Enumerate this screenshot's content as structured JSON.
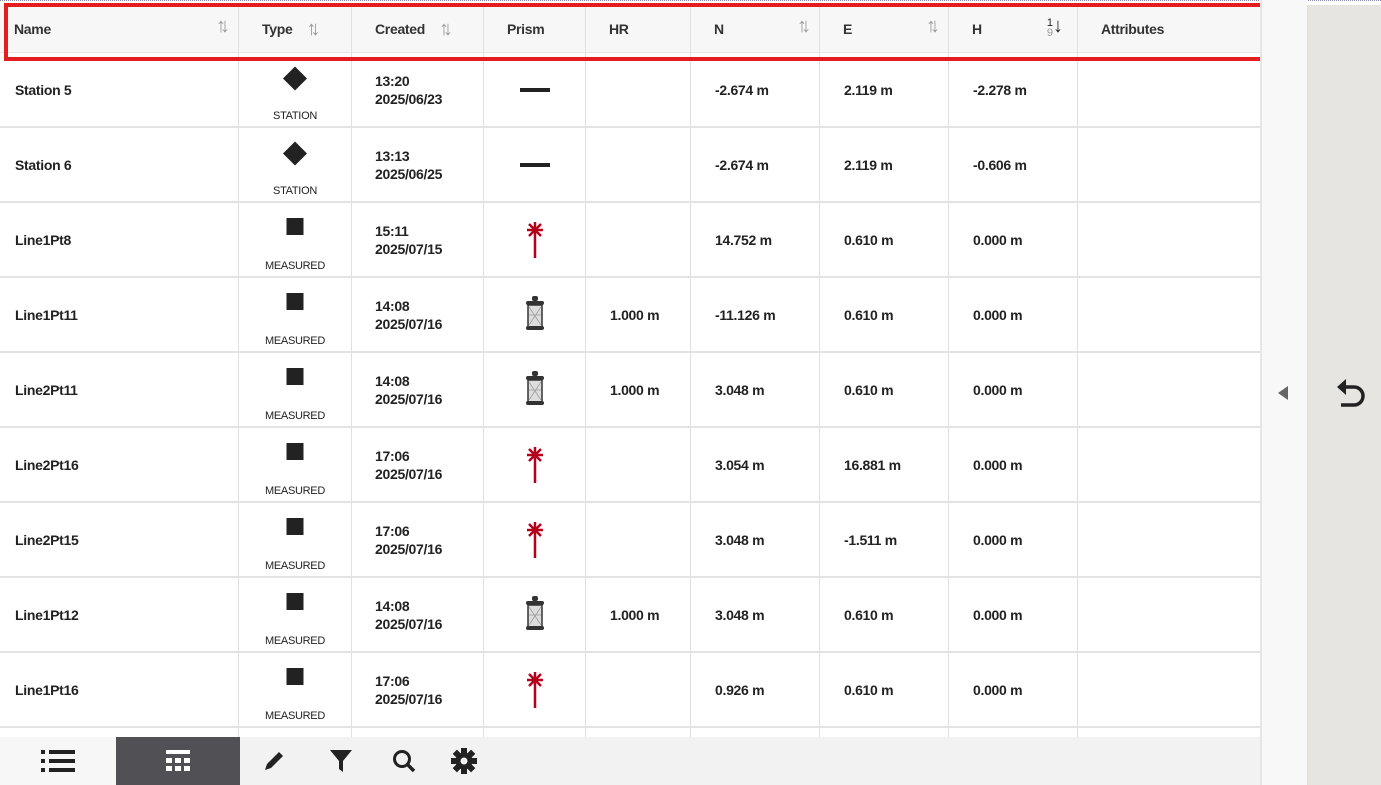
{
  "columns": [
    {
      "label": "Name",
      "sort": "sortable"
    },
    {
      "label": "Type",
      "sort": "sortable"
    },
    {
      "label": "Created",
      "sort": "sortable"
    },
    {
      "label": "Prism",
      "sort": ""
    },
    {
      "label": "HR",
      "sort": ""
    },
    {
      "label": "N",
      "sort": "sortable"
    },
    {
      "label": "E",
      "sort": "sortable"
    },
    {
      "label": "H",
      "sort": "ascending-numeric"
    },
    {
      "label": "Attributes",
      "sort": ""
    }
  ],
  "rows": [
    {
      "name": "Station 5",
      "type": "STATION",
      "time": "13:20",
      "date": "2025/06/23",
      "prism": "none",
      "hr": "",
      "n": "-2.674 m",
      "e": "2.119 m",
      "h": "-2.278 m"
    },
    {
      "name": "Station 6",
      "type": "STATION",
      "time": "13:13",
      "date": "2025/06/25",
      "prism": "none",
      "hr": "",
      "n": "-2.674 m",
      "e": "2.119 m",
      "h": "-0.606 m"
    },
    {
      "name": "Line1Pt8",
      "type": "MEASURED",
      "time": "15:11",
      "date": "2025/07/15",
      "prism": "laser",
      "hr": "",
      "n": "14.752 m",
      "e": "0.610 m",
      "h": "0.000 m"
    },
    {
      "name": "Line1Pt11",
      "type": "MEASURED",
      "time": "14:08",
      "date": "2025/07/16",
      "prism": "prism",
      "hr": "1.000 m",
      "n": "-11.126 m",
      "e": "0.610 m",
      "h": "0.000 m"
    },
    {
      "name": "Line2Pt11",
      "type": "MEASURED",
      "time": "14:08",
      "date": "2025/07/16",
      "prism": "prism",
      "hr": "1.000 m",
      "n": "3.048 m",
      "e": "0.610 m",
      "h": "0.000 m"
    },
    {
      "name": "Line2Pt16",
      "type": "MEASURED",
      "time": "17:06",
      "date": "2025/07/16",
      "prism": "laser",
      "hr": "",
      "n": "3.054 m",
      "e": "16.881 m",
      "h": "0.000 m"
    },
    {
      "name": "Line2Pt15",
      "type": "MEASURED",
      "time": "17:06",
      "date": "2025/07/16",
      "prism": "laser",
      "hr": "",
      "n": "3.048 m",
      "e": "-1.511 m",
      "h": "0.000 m"
    },
    {
      "name": "Line1Pt12",
      "type": "MEASURED",
      "time": "14:08",
      "date": "2025/07/16",
      "prism": "prism",
      "hr": "1.000 m",
      "n": "3.048 m",
      "e": "0.610 m",
      "h": "0.000 m"
    },
    {
      "name": "Line1Pt16",
      "type": "MEASURED",
      "time": "17:06",
      "date": "2025/07/16",
      "prism": "laser",
      "hr": "",
      "n": "0.926 m",
      "e": "0.610 m",
      "h": "0.000 m"
    }
  ],
  "toolbar": [
    "list-icon",
    "table-icon",
    "pencil-icon",
    "filter-icon",
    "search-icon",
    "gear-icon"
  ],
  "toolbar_active": "table-icon",
  "colors": {
    "laser": "#b3001b",
    "highlight": "#e41e1e",
    "active_tab": "#515054"
  }
}
